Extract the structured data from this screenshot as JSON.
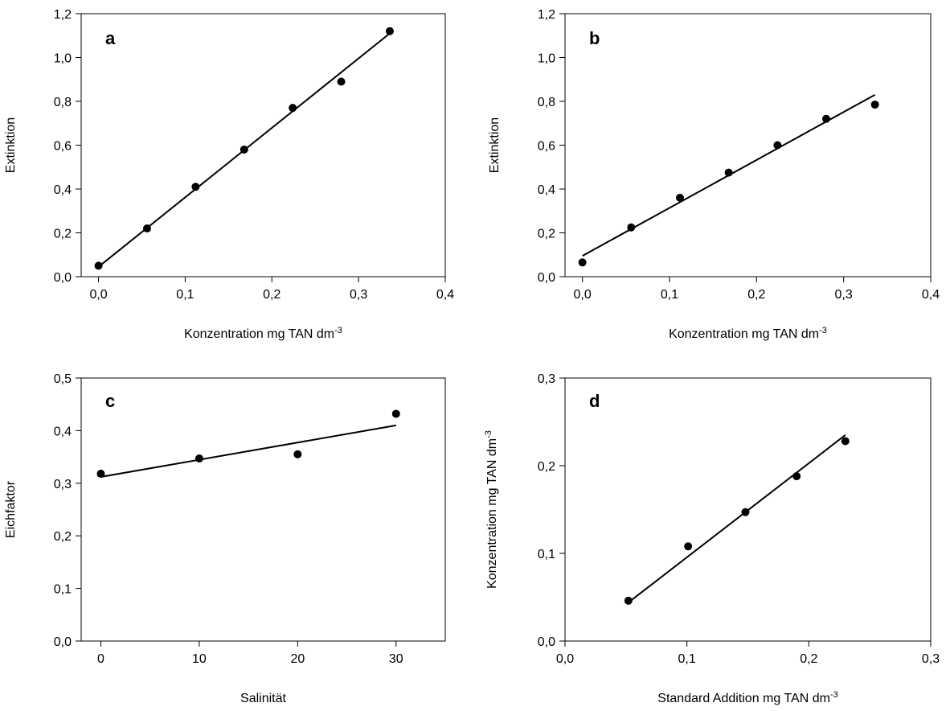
{
  "chart_data": [
    {
      "type": "scatter",
      "panel_label": "a",
      "xlabel": "Konzentration mg TAN dm",
      "xlabel_sup": "-3",
      "ylabel": "Extinktion",
      "ylabel_sup": "",
      "xlim": [
        -0.02,
        0.4
      ],
      "ylim": [
        0,
        1.2
      ],
      "xticks": [
        0.0,
        0.1,
        0.2,
        0.3,
        0.4
      ],
      "xtick_labels": [
        "0,0",
        "0,1",
        "0,2",
        "0,3",
        "0,4"
      ],
      "yticks": [
        0.0,
        0.2,
        0.4,
        0.6,
        0.8,
        1.0,
        1.2
      ],
      "ytick_labels": [
        "0,0",
        "0,2",
        "0,4",
        "0,6",
        "0,8",
        "1,0",
        "1,2"
      ],
      "points": {
        "x": [
          0.0,
          0.056,
          0.112,
          0.168,
          0.224,
          0.28,
          0.336
        ],
        "y": [
          0.05,
          0.22,
          0.41,
          0.58,
          0.77,
          0.89,
          1.12
        ]
      },
      "fit_line": {
        "x": [
          0.0,
          0.336
        ],
        "y": [
          0.045,
          1.11
        ]
      },
      "grid": false
    },
    {
      "type": "scatter",
      "panel_label": "b",
      "xlabel": "Konzentration mg TAN dm",
      "xlabel_sup": "-3",
      "ylabel": "Extinktion",
      "ylabel_sup": "",
      "xlim": [
        -0.02,
        0.4
      ],
      "ylim": [
        0,
        1.2
      ],
      "xticks": [
        0.0,
        0.1,
        0.2,
        0.3,
        0.4
      ],
      "xtick_labels": [
        "0,0",
        "0,1",
        "0,2",
        "0,3",
        "0,4"
      ],
      "yticks": [
        0.0,
        0.2,
        0.4,
        0.6,
        0.8,
        1.0,
        1.2
      ],
      "ytick_labels": [
        "0,0",
        "0,2",
        "0,4",
        "0,6",
        "0,8",
        "1,0",
        "1,2"
      ],
      "points": {
        "x": [
          0.0,
          0.056,
          0.112,
          0.168,
          0.224,
          0.28,
          0.336
        ],
        "y": [
          0.065,
          0.225,
          0.36,
          0.475,
          0.6,
          0.72,
          0.785
        ]
      },
      "fit_line": {
        "x": [
          0.0,
          0.336
        ],
        "y": [
          0.095,
          0.83
        ]
      },
      "grid": false
    },
    {
      "type": "scatter",
      "panel_label": "c",
      "xlabel": "Salinität",
      "xlabel_sup": "",
      "ylabel": "Eichfaktor",
      "ylabel_sup": "",
      "xlim": [
        -2,
        35
      ],
      "ylim": [
        0,
        0.5
      ],
      "xticks": [
        0,
        10,
        20,
        30
      ],
      "xtick_labels": [
        "0",
        "10",
        "20",
        "30"
      ],
      "yticks": [
        0.0,
        0.1,
        0.2,
        0.3,
        0.4,
        0.5
      ],
      "ytick_labels": [
        "0,0",
        "0,1",
        "0,2",
        "0,3",
        "0,4",
        "0,5"
      ],
      "points": {
        "x": [
          0,
          10,
          20,
          30
        ],
        "y": [
          0.318,
          0.347,
          0.355,
          0.432
        ]
      },
      "fit_line": {
        "x": [
          0,
          30
        ],
        "y": [
          0.312,
          0.41
        ]
      },
      "grid": false
    },
    {
      "type": "scatter",
      "panel_label": "d",
      "xlabel": "Standard Addition mg TAN dm",
      "xlabel_sup": "-3",
      "ylabel": "Konzentration mg TAN dm",
      "ylabel_sup": "-3",
      "xlim": [
        0,
        0.3
      ],
      "ylim": [
        0,
        0.3
      ],
      "xticks": [
        0.0,
        0.1,
        0.2,
        0.3
      ],
      "xtick_labels": [
        "0,0",
        "0,1",
        "0,2",
        "0,3"
      ],
      "yticks": [
        0.0,
        0.1,
        0.2,
        0.3
      ],
      "ytick_labels": [
        "0,0",
        "0,1",
        "0,2",
        "0,3"
      ],
      "points": {
        "x": [
          0.052,
          0.101,
          0.148,
          0.19,
          0.23
        ],
        "y": [
          0.046,
          0.108,
          0.147,
          0.188,
          0.228
        ]
      },
      "fit_line": {
        "x": [
          0.052,
          0.23
        ],
        "y": [
          0.044,
          0.235
        ]
      },
      "grid": false
    }
  ]
}
